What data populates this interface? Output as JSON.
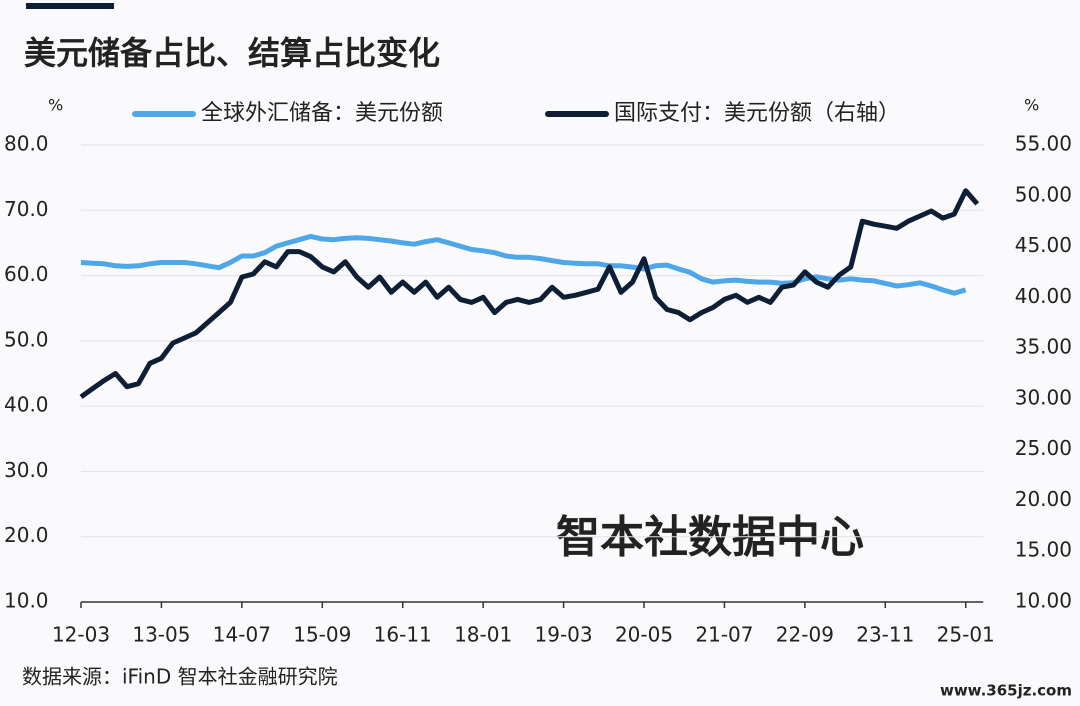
{
  "chart_data": {
    "type": "line",
    "title": "美元储备占比、结算占比变化",
    "y_label": "%",
    "y2_label": "%",
    "source": "数据来源：iFinD 智本社金融研究院",
    "watermark": "智本社数据中心",
    "website": "www.365jz.com",
    "categories": [
      "12-03",
      null,
      null,
      null,
      null,
      null,
      null,
      "13-05",
      null,
      null,
      null,
      null,
      null,
      null,
      "14-07",
      null,
      null,
      null,
      null,
      null,
      null,
      "15-09",
      null,
      null,
      null,
      null,
      null,
      null,
      "16-11",
      null,
      null,
      null,
      null,
      null,
      null,
      "18-01",
      null,
      null,
      null,
      null,
      null,
      null,
      "19-03",
      null,
      null,
      null,
      null,
      null,
      null,
      "20-05",
      null,
      null,
      null,
      null,
      null,
      null,
      "21-07",
      null,
      null,
      null,
      null,
      null,
      null,
      "22-09",
      null,
      null,
      null,
      null,
      null,
      null,
      "23-11",
      null,
      null,
      null,
      null,
      null,
      null,
      "25-01",
      null
    ],
    "series": [
      {
        "name": "全球外汇储备：美元份额",
        "color": "#4ea7e8",
        "axis": "y",
        "values": [
          62.0,
          61.9,
          61.8,
          61.5,
          61.4,
          61.5,
          61.8,
          62.0,
          62.0,
          62.0,
          61.8,
          61.5,
          61.2,
          62.0,
          63.0,
          63.0,
          63.5,
          64.5,
          65.0,
          65.5,
          66.0,
          65.6,
          65.5,
          65.7,
          65.8,
          65.7,
          65.5,
          65.3,
          65.0,
          64.8,
          65.2,
          65.5,
          65.0,
          64.5,
          64.0,
          63.8,
          63.5,
          63.0,
          62.8,
          62.8,
          62.6,
          62.3,
          62.0,
          61.9,
          61.8,
          61.8,
          61.5,
          61.5,
          61.3,
          61.0,
          61.5,
          61.6,
          61.0,
          60.5,
          59.5,
          59.0,
          59.2,
          59.3,
          59.1,
          59.0,
          59.0,
          58.8,
          58.9,
          59.5,
          59.8,
          59.5,
          59.3,
          59.5,
          59.3,
          59.2,
          58.8,
          58.4,
          58.6,
          58.9,
          58.4,
          57.8,
          57.3,
          57.8,
          null
        ]
      },
      {
        "name": "国际支付：美元份额（右轴）",
        "color": "#0d1e35",
        "axis": "y2",
        "values": [
          30.2,
          31.0,
          31.8,
          32.5,
          31.2,
          31.5,
          33.5,
          34.0,
          35.5,
          36.0,
          36.5,
          37.5,
          38.5,
          39.5,
          42.0,
          42.3,
          43.5,
          43.0,
          44.5,
          44.5,
          44.0,
          43.0,
          42.5,
          43.5,
          42.0,
          41.0,
          42.0,
          40.5,
          41.5,
          40.5,
          41.5,
          40.0,
          41.0,
          39.8,
          39.5,
          40.0,
          38.5,
          39.5,
          39.8,
          39.5,
          39.8,
          41.0,
          40.0,
          40.2,
          40.5,
          40.8,
          43.0,
          40.5,
          41.5,
          43.8,
          40.0,
          38.8,
          38.5,
          37.8,
          38.5,
          39.0,
          39.8,
          40.2,
          39.5,
          40.0,
          39.5,
          41.0,
          41.2,
          42.5,
          41.5,
          41.0,
          42.2,
          43.0,
          47.5,
          47.2,
          47.0,
          46.8,
          47.5,
          48.0,
          48.5,
          47.8,
          48.2,
          50.5,
          49.2
        ]
      }
    ],
    "ylim": [
      10,
      80
    ],
    "yticks": [
      {
        "value": 10,
        "label": "10.0"
      },
      {
        "value": 20,
        "label": "20.0"
      },
      {
        "value": 30,
        "label": "30.0"
      },
      {
        "value": 40,
        "label": "40.0"
      },
      {
        "value": 50,
        "label": "50.0"
      },
      {
        "value": 60,
        "label": "60.0"
      },
      {
        "value": 70,
        "label": "70.0"
      },
      {
        "value": 80,
        "label": "80.0"
      }
    ],
    "y2lim": [
      10,
      55
    ],
    "y2ticks": [
      {
        "value": 10,
        "label": "10.00"
      },
      {
        "value": 15,
        "label": "15.00"
      },
      {
        "value": 20,
        "label": "20.00"
      },
      {
        "value": 25,
        "label": "25.00"
      },
      {
        "value": 30,
        "label": "30.00"
      },
      {
        "value": 35,
        "label": "35.00"
      },
      {
        "value": 40,
        "label": "40.00"
      },
      {
        "value": 45,
        "label": "45.00"
      },
      {
        "value": 50,
        "label": "50.00"
      },
      {
        "value": 55,
        "label": "55.00"
      }
    ],
    "grid": true,
    "legend": "top"
  }
}
